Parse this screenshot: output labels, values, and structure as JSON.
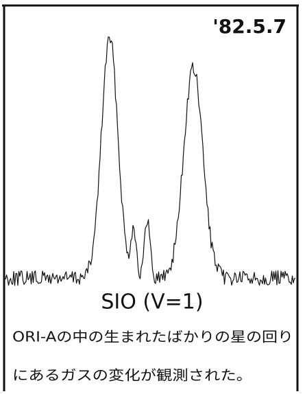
{
  "date": "'82.5.7",
  "label": "SIO (V=1)",
  "caption": [
    "ORI-Aの中の生まれたばかりの星の回り",
    "にあるガスの変化が観測された。"
  ]
}
